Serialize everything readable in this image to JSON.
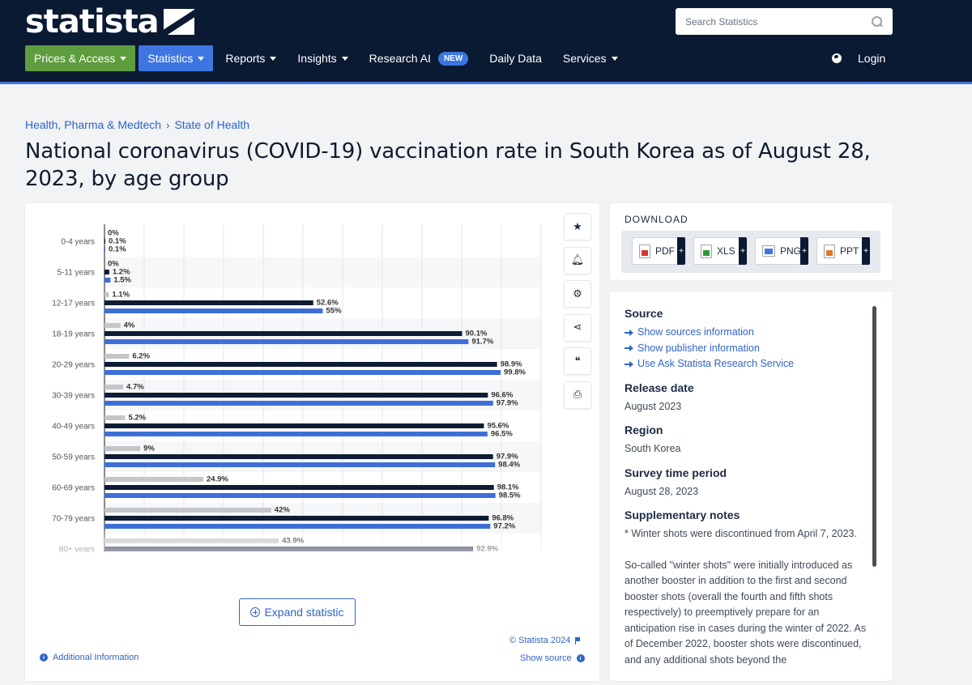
{
  "header": {
    "logo_text": "statista",
    "search_placeholder": "Search Statistics",
    "nav": [
      {
        "label": "Prices & Access"
      },
      {
        "label": "Statistics"
      },
      {
        "label": "Reports"
      },
      {
        "label": "Insights"
      },
      {
        "label": "Research AI",
        "badge": "NEW"
      },
      {
        "label": "Daily Data"
      },
      {
        "label": "Services"
      }
    ],
    "login_label": "Login"
  },
  "breadcrumb": [
    "Health, Pharma & Medtech",
    "State of Health"
  ],
  "title": "National coronavirus (COVID-19) vaccination rate in South Korea as of August 28, 2023, by age group",
  "chart_data": {
    "type": "bar",
    "orientation": "horizontal",
    "categories": [
      "0-4 years",
      "5-11 years",
      "12-17 years",
      "18-19 years",
      "20-29 years",
      "30-39 years",
      "40-49 years",
      "50-59 years",
      "60-69 years",
      "70-79 years",
      "80+ years"
    ],
    "series": [
      {
        "color": "#c4c6c9",
        "values": [
          0,
          0,
          1.1,
          4,
          6.2,
          4.7,
          5.2,
          9,
          24.9,
          42,
          43.9
        ],
        "labels": [
          "0%",
          "0%",
          "1.1%",
          "4%",
          "6.2%",
          "4.7%",
          "5.2%",
          "9%",
          "24.9%",
          "42%",
          "43.9%"
        ]
      },
      {
        "color": "#0f1c35",
        "values": [
          0.1,
          1.2,
          52.6,
          90.1,
          98.9,
          96.6,
          95.6,
          97.9,
          98.1,
          96.8,
          92.9
        ],
        "labels": [
          "0.1%",
          "1.2%",
          "52.6%",
          "90.1%",
          "98.9%",
          "96.6%",
          "95.6%",
          "97.9%",
          "98.1%",
          "96.8%",
          "92.9%"
        ]
      },
      {
        "color": "#3e6fd8",
        "values": [
          0.1,
          1.5,
          55,
          91.7,
          99.8,
          97.9,
          96.5,
          98.4,
          98.5,
          97.2,
          null
        ],
        "labels": [
          "0.1%",
          "1.5%",
          "55%",
          "91.7%",
          "99.8%",
          "97.9%",
          "96.5%",
          "98.4%",
          "98.5%",
          "97.2%",
          ""
        ]
      }
    ],
    "xlim": [
      0,
      110
    ],
    "grid": true,
    "legend": "none"
  },
  "chart_card": {
    "expand_label": "Expand statistic",
    "copyright": "© Statista 2024",
    "show_source": "Show source",
    "additional_info": "Additional Information",
    "tools": [
      "star-icon",
      "bell-icon",
      "gear-icon",
      "share-icon",
      "quote-icon",
      "print-icon"
    ]
  },
  "download": {
    "label": "DOWNLOAD",
    "buttons": [
      "PDF",
      "XLS",
      "PNG",
      "PPT"
    ]
  },
  "info": {
    "source_heading": "Source",
    "source_links": [
      "Show sources information",
      "Show publisher information",
      "Use Ask Statista Research Service"
    ],
    "release_heading": "Release date",
    "release_value": "August 2023",
    "region_heading": "Region",
    "region_value": "South Korea",
    "survey_heading": "Survey time period",
    "survey_value": "August 28, 2023",
    "notes_heading": "Supplementary notes",
    "notes_1": "* Winter shots were discontinued from April 7, 2023.",
    "notes_2": "So-called \"winter shots\" were initially introduced as another booster in addition to the first and second booster shots (overall the fourth and fifth shots respectively) to preemptively prepare for an anticipation rise in cases during the winter of 2022. As of December 2022, booster shots were discontinued, and any additional shots beyond the"
  }
}
